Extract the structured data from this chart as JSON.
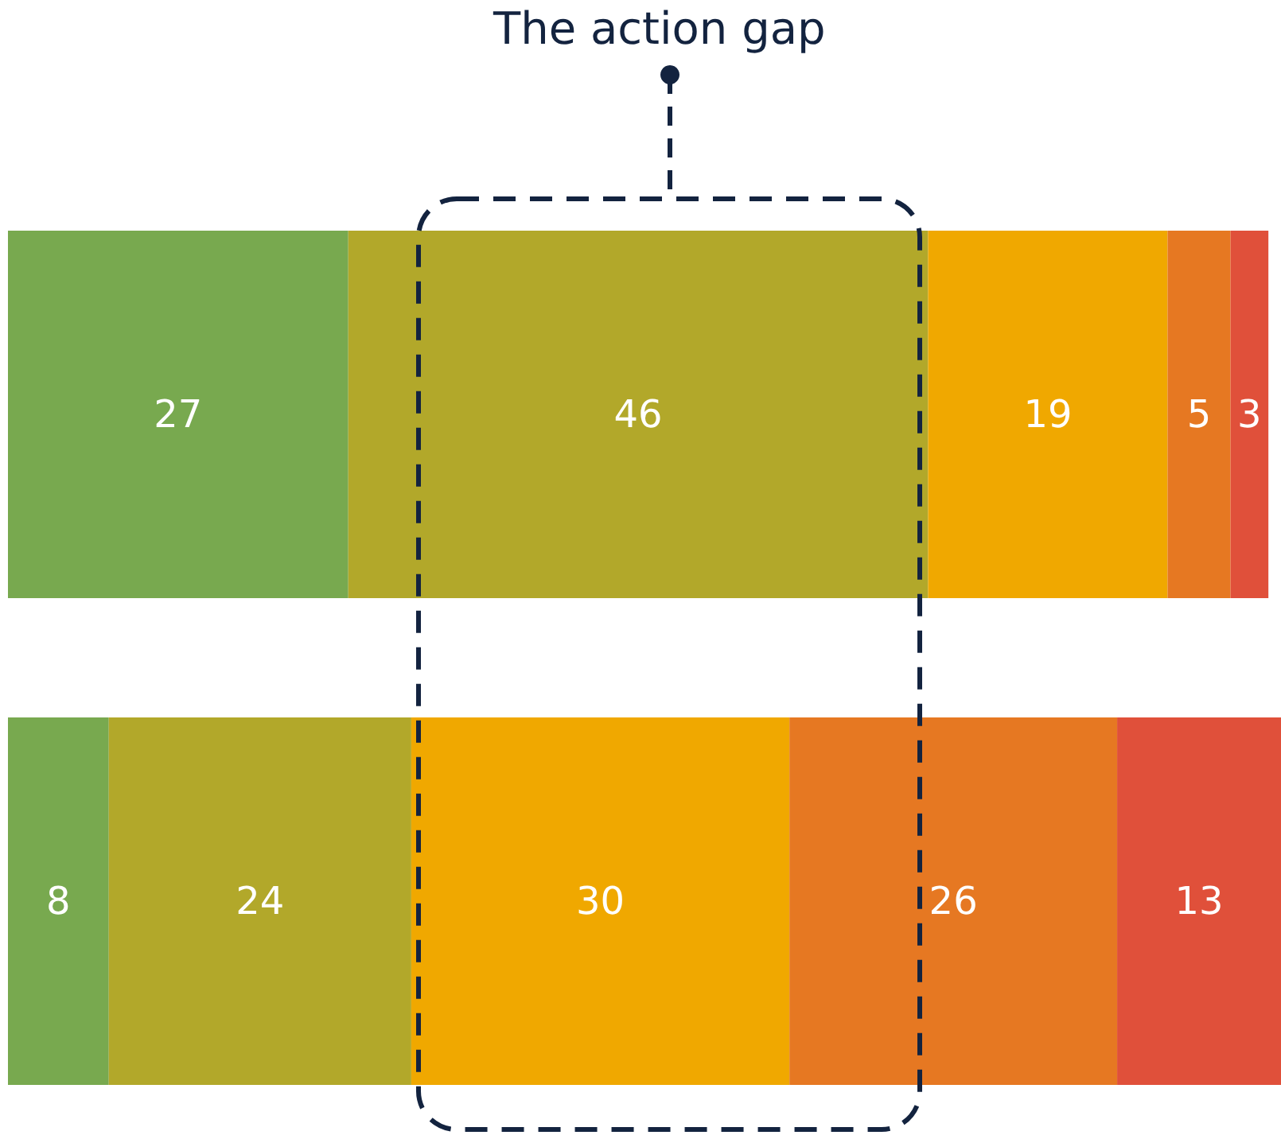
{
  "chart_data": {
    "type": "bar",
    "orientation": "horizontal",
    "stacked": true,
    "categories": [
      null,
      null
    ],
    "series": [
      {
        "color": "#78a94f",
        "values": [
          27,
          8
        ]
      },
      {
        "color": "#b2a82a",
        "values": [
          46,
          24
        ]
      },
      {
        "color": "#f0a800",
        "values": [
          19,
          30
        ]
      },
      {
        "color": "#e67822",
        "values": [
          5,
          26
        ]
      },
      {
        "color": "#e0503a",
        "values": [
          3,
          13
        ]
      }
    ],
    "xlim": [
      0,
      101
    ],
    "data_labels": true,
    "tick_labels": false,
    "annotations": [
      "The action gap"
    ]
  }
}
